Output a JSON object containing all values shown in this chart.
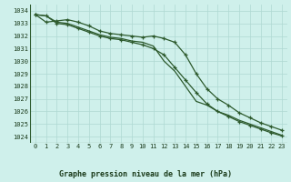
{
  "title": "Graphe pression niveau de la mer (hPa)",
  "bg_color": "#cff0eb",
  "grid_color": "#aed8d2",
  "line_color": "#2d5a2d",
  "x_labels": [
    0,
    1,
    2,
    3,
    4,
    5,
    6,
    7,
    8,
    9,
    10,
    11,
    12,
    13,
    14,
    15,
    16,
    17,
    18,
    19,
    20,
    21,
    22,
    23
  ],
  "ylim": [
    1023.5,
    1034.5
  ],
  "yticks": [
    1024,
    1025,
    1026,
    1027,
    1028,
    1029,
    1030,
    1031,
    1032,
    1033,
    1034
  ],
  "line1_nomarker": [
    1033.7,
    1033.6,
    1033.1,
    1033.0,
    1032.7,
    1032.4,
    1032.1,
    1031.9,
    1031.8,
    1031.6,
    1031.5,
    1031.2,
    1030.0,
    1029.2,
    1028.0,
    1026.8,
    1026.5,
    1026.0,
    1025.7,
    1025.3,
    1025.0,
    1024.7,
    1024.4,
    1024.1
  ],
  "line2_upper": [
    1033.7,
    1033.1,
    1033.2,
    1033.3,
    1033.1,
    1032.8,
    1032.4,
    1032.2,
    1032.1,
    1032.0,
    1031.9,
    1032.0,
    1031.8,
    1031.5,
    1030.5,
    1029.0,
    1027.8,
    1027.0,
    1026.5,
    1025.9,
    1025.5,
    1025.1,
    1024.8,
    1024.5
  ],
  "line3_lower": [
    1033.7,
    1033.6,
    1033.0,
    1032.9,
    1032.6,
    1032.3,
    1032.0,
    1031.8,
    1031.7,
    1031.5,
    1031.3,
    1031.0,
    1030.5,
    1029.5,
    1028.5,
    1027.5,
    1026.6,
    1026.0,
    1025.6,
    1025.2,
    1024.9,
    1024.6,
    1024.3,
    1024.05
  ]
}
